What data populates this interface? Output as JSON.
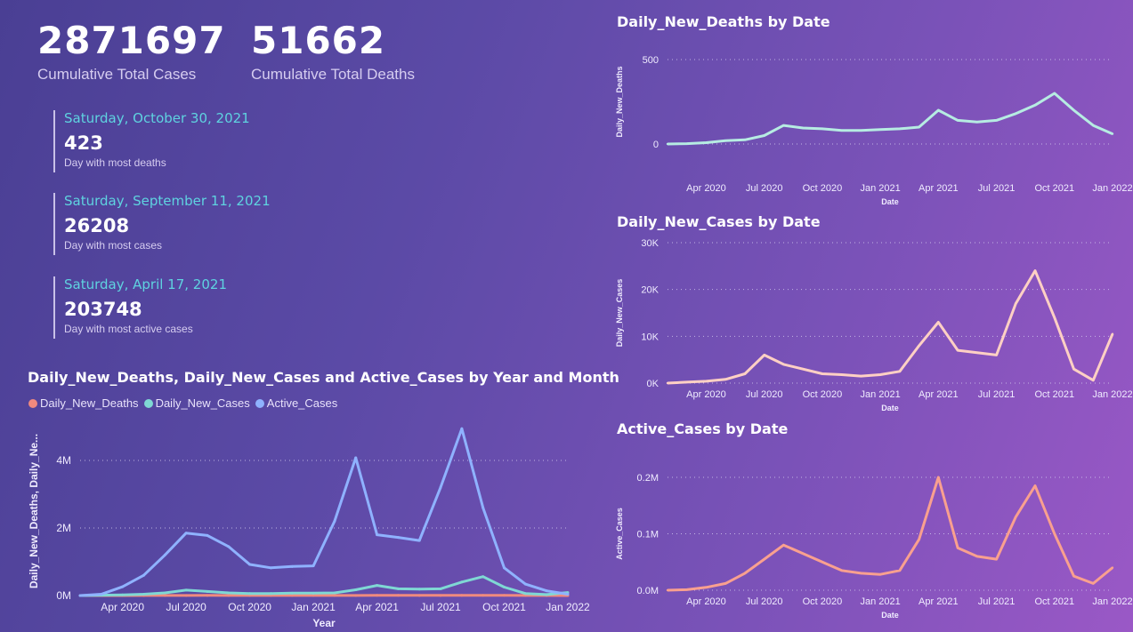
{
  "kpis": [
    {
      "value": "2871697",
      "label": "Cumulative Total Cases"
    },
    {
      "value": "51662",
      "label": "Cumulative Total Deaths"
    }
  ],
  "cards": [
    {
      "date": "Saturday, October 30, 2021",
      "value": "423",
      "label": "Day with most deaths"
    },
    {
      "date": "Saturday, September 11, 2021",
      "value": "26208",
      "label": "Day with most cases"
    },
    {
      "date": "Saturday, April 17, 2021",
      "value": "203748",
      "label": "Day with most active cases"
    }
  ],
  "chart_data": [
    {
      "id": "monthly",
      "type": "line",
      "title": "Daily_New_Deaths, Daily_New_Cases and Active_Cases by Year and Month",
      "xlabel": "Year",
      "ylabel": "Daily_New_Deaths, Daily_Ne...",
      "ylim": [
        0,
        5000000
      ],
      "yticks": [
        0,
        2000000,
        4000000
      ],
      "ytick_labels": [
        "0M",
        "2M",
        "4M"
      ],
      "grid": true,
      "legend_position": "top-left",
      "x": [
        "2020-02",
        "2020-03",
        "2020-04",
        "2020-05",
        "2020-06",
        "2020-07",
        "2020-08",
        "2020-09",
        "2020-10",
        "2020-11",
        "2020-12",
        "2021-01",
        "2021-02",
        "2021-03",
        "2021-04",
        "2021-05",
        "2021-06",
        "2021-07",
        "2021-08",
        "2021-09",
        "2021-10",
        "2021-11",
        "2021-12",
        "2022-01"
      ],
      "xticks": [
        "Apr 2020",
        "Jul 2020",
        "Oct 2020",
        "Jan 2021",
        "Apr 2021",
        "Jul 2021",
        "Oct 2021",
        "Jan 2022"
      ],
      "series": [
        {
          "name": "Daily_New_Deaths",
          "color": "#f08a7e",
          "values": [
            0,
            0,
            1000,
            1500,
            2000,
            3000,
            4000,
            3500,
            3000,
            2500,
            2500,
            2500,
            2500,
            3000,
            5000,
            5000,
            4000,
            4000,
            5000,
            6000,
            6000,
            3000,
            1500,
            500
          ]
        },
        {
          "name": "Daily_New_Cases",
          "color": "#7fd8d4",
          "values": [
            0,
            10000,
            20000,
            40000,
            80000,
            160000,
            120000,
            80000,
            60000,
            60000,
            70000,
            70000,
            80000,
            170000,
            300000,
            200000,
            190000,
            200000,
            400000,
            560000,
            250000,
            60000,
            30000,
            90000
          ]
        },
        {
          "name": "Active_Cases",
          "color": "#8fb2ff",
          "values": [
            0,
            40000,
            260000,
            600000,
            1200000,
            1850000,
            1780000,
            1450000,
            920000,
            820000,
            860000,
            880000,
            2200000,
            4080000,
            1800000,
            1720000,
            1630000,
            3200000,
            4940000,
            2600000,
            820000,
            340000,
            140000,
            40000
          ]
        }
      ]
    },
    {
      "id": "deaths",
      "type": "line",
      "title": "Daily_New_Deaths by Date",
      "xlabel": "Date",
      "ylabel": "Daily_New_Deaths",
      "ylim": [
        0,
        500
      ],
      "yticks": [
        0,
        500
      ],
      "ytick_labels": [
        "0",
        "500"
      ],
      "grid": true,
      "color": "#b6ece2",
      "x_start": "2020-02-15",
      "x_end": "2022-01-10",
      "xticks": [
        "Apr 2020",
        "Jul 2020",
        "Oct 2020",
        "Jan 2021",
        "Apr 2021",
        "Jul 2021",
        "Oct 2021",
        "Jan 2022"
      ],
      "x": [
        "2020-02",
        "2020-03",
        "2020-04",
        "2020-05",
        "2020-06",
        "2020-07",
        "2020-08",
        "2020-09",
        "2020-10",
        "2020-11",
        "2020-12",
        "2021-01",
        "2021-02",
        "2021-03",
        "2021-04",
        "2021-05",
        "2021-06",
        "2021-07",
        "2021-08",
        "2021-09",
        "2021-10",
        "2021-11",
        "2021-12",
        "2022-01"
      ],
      "values": [
        0,
        2,
        8,
        20,
        25,
        50,
        110,
        95,
        90,
        80,
        80,
        85,
        90,
        100,
        200,
        140,
        130,
        140,
        180,
        230,
        300,
        200,
        110,
        60
      ]
    },
    {
      "id": "cases",
      "type": "line",
      "title": "Daily_New_Cases by Date",
      "xlabel": "Date",
      "ylabel": "Daily_New_Cases",
      "ylim": [
        0,
        30000
      ],
      "yticks": [
        0,
        10000,
        20000,
        30000
      ],
      "ytick_labels": [
        "0K",
        "10K",
        "20K",
        "30K"
      ],
      "grid": true,
      "color": "#ffd0c4",
      "x_start": "2020-02-15",
      "x_end": "2022-01-10",
      "xticks": [
        "Apr 2020",
        "Jul 2020",
        "Oct 2020",
        "Jan 2021",
        "Apr 2021",
        "Jul 2021",
        "Oct 2021",
        "Jan 2022"
      ],
      "x": [
        "2020-02",
        "2020-03",
        "2020-04",
        "2020-05",
        "2020-06",
        "2020-07",
        "2020-08",
        "2020-09",
        "2020-10",
        "2020-11",
        "2020-12",
        "2021-01",
        "2021-02",
        "2021-03",
        "2021-04",
        "2021-05",
        "2021-06",
        "2021-07",
        "2021-08",
        "2021-09",
        "2021-10",
        "2021-11",
        "2021-12",
        "2022-01"
      ],
      "values": [
        0,
        200,
        400,
        800,
        2000,
        6000,
        4000,
        3000,
        2000,
        1800,
        1500,
        1800,
        2500,
        8000,
        13000,
        7000,
        6500,
        6000,
        17000,
        24000,
        14000,
        3000,
        600,
        10500
      ]
    },
    {
      "id": "active",
      "type": "line",
      "title": "Active_Cases by Date",
      "xlabel": "Date",
      "ylabel": "Active_Cases",
      "ylim": [
        0,
        200000
      ],
      "yticks": [
        0,
        100000,
        200000
      ],
      "ytick_labels": [
        "0.0M",
        "0.1M",
        "0.2M"
      ],
      "grid": true,
      "color": "#f9a08f",
      "x_start": "2020-02-15",
      "x_end": "2022-01-10",
      "xticks": [
        "Apr 2020",
        "Jul 2020",
        "Oct 2020",
        "Jan 2021",
        "Apr 2021",
        "Jul 2021",
        "Oct 2021",
        "Jan 2022"
      ],
      "x": [
        "2020-02",
        "2020-03",
        "2020-04",
        "2020-05",
        "2020-06",
        "2020-07",
        "2020-08",
        "2020-09",
        "2020-10",
        "2020-11",
        "2020-12",
        "2021-01",
        "2021-02",
        "2021-03",
        "2021-04",
        "2021-05",
        "2021-06",
        "2021-07",
        "2021-08",
        "2021-09",
        "2021-10",
        "2021-11",
        "2021-12",
        "2022-01"
      ],
      "values": [
        0,
        1000,
        5000,
        12000,
        30000,
        55000,
        80000,
        65000,
        50000,
        35000,
        30000,
        28000,
        35000,
        90000,
        200000,
        75000,
        60000,
        55000,
        130000,
        185000,
        100000,
        25000,
        12000,
        40000
      ]
    }
  ]
}
